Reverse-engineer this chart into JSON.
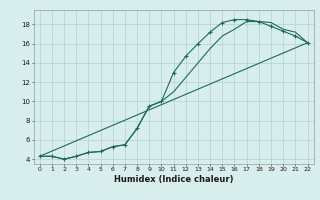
{
  "xlabel": "Humidex (Indice chaleur)",
  "ylabel": "",
  "bg_color": "#d8eeec",
  "grid_color": "#b0d4d0",
  "line_color": "#1a6b5a",
  "xlim": [
    -0.5,
    22.5
  ],
  "ylim": [
    3.5,
    19.5
  ],
  "xticks": [
    0,
    1,
    2,
    3,
    4,
    5,
    6,
    7,
    8,
    9,
    10,
    11,
    12,
    13,
    14,
    15,
    16,
    17,
    18,
    19,
    20,
    21,
    22
  ],
  "yticks": [
    4,
    6,
    8,
    10,
    12,
    14,
    16,
    18
  ],
  "curve1_x": [
    0,
    1,
    2,
    3,
    4,
    5,
    6,
    7,
    8,
    9,
    10,
    11,
    12,
    13,
    14,
    15,
    16,
    17,
    18,
    19,
    20,
    21,
    22
  ],
  "curve1_y": [
    4.3,
    4.3,
    4.0,
    4.3,
    4.7,
    4.8,
    5.3,
    5.5,
    7.2,
    9.5,
    10.0,
    13.0,
    14.7,
    16.0,
    17.2,
    18.2,
    18.5,
    18.5,
    18.3,
    17.8,
    17.3,
    16.8,
    16.1
  ],
  "curve2_x": [
    0,
    1,
    2,
    3,
    4,
    5,
    6,
    7,
    8,
    9,
    10,
    11,
    12,
    13,
    14,
    15,
    16,
    17,
    18,
    19,
    20,
    21,
    22
  ],
  "curve2_y": [
    4.3,
    4.3,
    4.0,
    4.3,
    4.7,
    4.8,
    5.3,
    5.5,
    7.2,
    9.5,
    10.0,
    11.0,
    12.5,
    14.0,
    15.5,
    16.8,
    17.5,
    18.3,
    18.3,
    18.2,
    17.5,
    17.2,
    16.1
  ],
  "curve3_x": [
    0,
    22
  ],
  "curve3_y": [
    4.3,
    16.1
  ],
  "figwidth": 3.2,
  "figheight": 2.0,
  "dpi": 100
}
